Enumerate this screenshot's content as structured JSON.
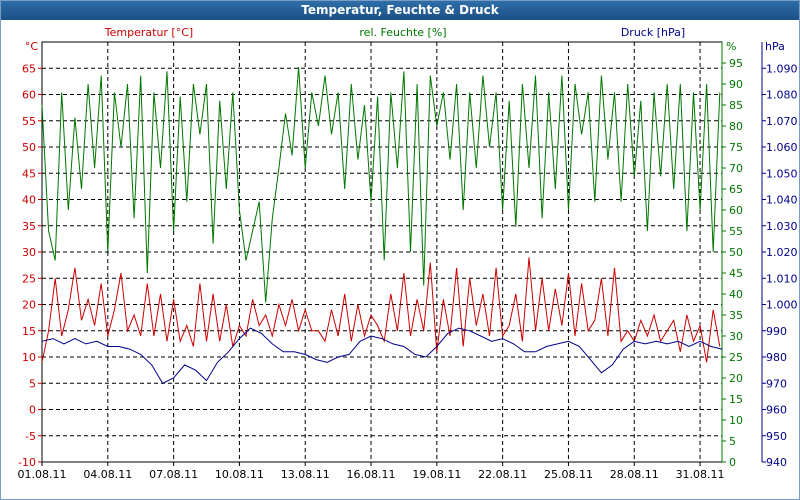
{
  "window": {
    "title": "Temperatur, Feuchte & Druck"
  },
  "chart_data": {
    "type": "line",
    "title": "Temperatur, Feuchte & Druck",
    "grid": true,
    "x_ticks": [
      "01.08.11",
      "04.08.11",
      "07.08.11",
      "10.08.11",
      "13.08.11",
      "16.08.11",
      "19.08.11",
      "22.08.11",
      "25.08.11",
      "28.08.11",
      "31.08.11"
    ],
    "x_range_days": [
      1,
      32
    ],
    "axes": {
      "left": {
        "label": "Temperatur [°C]",
        "unit": "°C",
        "range": [
          -10,
          70
        ],
        "ticks": [
          "-10",
          "-5",
          "0",
          "5",
          "10",
          "15",
          "20",
          "25",
          "30",
          "35",
          "40",
          "45",
          "50",
          "55",
          "60",
          "65"
        ],
        "color": "#cc0000"
      },
      "right1": {
        "label": "rel. Feuchte [%]",
        "unit": "%",
        "range": [
          0,
          100
        ],
        "ticks": [
          "0",
          "5",
          "10",
          "15",
          "20",
          "25",
          "30",
          "35",
          "40",
          "45",
          "50",
          "55",
          "60",
          "65",
          "70",
          "75",
          "80",
          "85",
          "90",
          "95"
        ],
        "color": "#007700"
      },
      "right2": {
        "label": "Druck [hPa]",
        "unit": "hPa",
        "range": [
          940,
          1100
        ],
        "ticks": [
          "940",
          "950",
          "960",
          "970",
          "980",
          "990",
          "1.000",
          "1.010",
          "1.020",
          "1.030",
          "1.040",
          "1.050",
          "1.060",
          "1.070",
          "1.080",
          "1.090"
        ],
        "color": "#00008b"
      }
    },
    "series": [
      {
        "name": "Temperatur [°C]",
        "axis": "left",
        "color": "#cc0000",
        "x": [
          1.0,
          1.3,
          1.6,
          1.9,
          2.2,
          2.5,
          2.8,
          3.1,
          3.4,
          3.7,
          4.0,
          4.3,
          4.6,
          4.9,
          5.2,
          5.5,
          5.8,
          6.1,
          6.4,
          6.7,
          7.0,
          7.3,
          7.6,
          7.9,
          8.2,
          8.5,
          8.8,
          9.1,
          9.4,
          9.7,
          10.0,
          10.3,
          10.6,
          10.9,
          11.2,
          11.5,
          11.8,
          12.1,
          12.4,
          12.7,
          13.0,
          13.3,
          13.6,
          13.9,
          14.2,
          14.5,
          14.8,
          15.1,
          15.4,
          15.7,
          16.0,
          16.3,
          16.6,
          16.9,
          17.2,
          17.5,
          17.8,
          18.1,
          18.4,
          18.7,
          19.0,
          19.3,
          19.6,
          19.9,
          20.2,
          20.5,
          20.8,
          21.1,
          21.4,
          21.7,
          22.0,
          22.3,
          22.6,
          22.9,
          23.2,
          23.5,
          23.8,
          24.1,
          24.4,
          24.7,
          25.0,
          25.3,
          25.6,
          25.9,
          26.2,
          26.5,
          26.8,
          27.1,
          27.4,
          27.7,
          28.0,
          28.3,
          28.6,
          28.9,
          29.2,
          29.5,
          29.8,
          30.1,
          30.4,
          30.7,
          31.0,
          31.3,
          31.6,
          31.9
        ],
        "values": [
          9,
          15,
          25,
          14,
          19,
          27,
          17,
          21,
          16,
          24,
          14,
          19,
          26,
          15,
          18,
          14,
          24,
          14,
          22,
          13,
          21,
          13,
          16,
          12,
          24,
          13,
          22,
          13,
          20,
          12,
          16,
          14,
          21,
          16,
          18,
          14,
          20,
          16,
          21,
          15,
          19,
          15,
          15,
          13,
          19,
          14,
          22,
          13,
          20,
          14,
          18,
          16,
          13,
          22,
          15,
          26,
          14,
          21,
          15,
          28,
          11,
          21,
          14,
          27,
          12,
          25,
          16,
          22,
          14,
          27,
          14,
          16,
          22,
          13,
          29,
          15,
          25,
          15,
          23,
          16,
          26,
          14,
          24,
          15,
          17,
          25,
          14,
          27,
          13,
          15,
          13,
          17,
          14,
          18,
          13,
          15,
          17,
          11,
          18,
          13,
          16,
          9,
          19,
          12
        ]
      },
      {
        "name": "rel. Feuchte [%]",
        "axis": "right1",
        "color": "#007700",
        "x": [
          1.0,
          1.3,
          1.6,
          1.9,
          2.2,
          2.5,
          2.8,
          3.1,
          3.4,
          3.7,
          4.0,
          4.3,
          4.6,
          4.9,
          5.2,
          5.5,
          5.8,
          6.1,
          6.4,
          6.7,
          7.0,
          7.3,
          7.6,
          7.9,
          8.2,
          8.5,
          8.8,
          9.1,
          9.4,
          9.7,
          10.0,
          10.3,
          10.6,
          10.9,
          11.2,
          11.5,
          11.8,
          12.1,
          12.4,
          12.7,
          13.0,
          13.3,
          13.6,
          13.9,
          14.2,
          14.5,
          14.8,
          15.1,
          15.4,
          15.7,
          16.0,
          16.3,
          16.6,
          16.9,
          17.2,
          17.5,
          17.8,
          18.1,
          18.4,
          18.7,
          19.0,
          19.3,
          19.6,
          19.9,
          20.2,
          20.5,
          20.8,
          21.1,
          21.4,
          21.7,
          22.0,
          22.3,
          22.6,
          22.9,
          23.2,
          23.5,
          23.8,
          24.1,
          24.4,
          24.7,
          25.0,
          25.3,
          25.6,
          25.9,
          26.2,
          26.5,
          26.8,
          27.1,
          27.4,
          27.7,
          28.0,
          28.3,
          28.6,
          28.9,
          29.2,
          29.5,
          29.8,
          30.1,
          30.4,
          30.7,
          31.0,
          31.3,
          31.6,
          31.9
        ],
        "values": [
          85,
          55,
          48,
          88,
          60,
          82,
          65,
          90,
          70,
          92,
          50,
          88,
          75,
          90,
          58,
          92,
          45,
          88,
          70,
          93,
          55,
          87,
          62,
          90,
          78,
          90,
          52,
          86,
          65,
          88,
          60,
          48,
          55,
          62,
          38,
          58,
          70,
          83,
          73,
          94,
          70,
          88,
          80,
          92,
          78,
          88,
          65,
          90,
          72,
          85,
          62,
          87,
          48,
          88,
          70,
          93,
          50,
          90,
          42,
          92,
          80,
          88,
          72,
          90,
          60,
          88,
          70,
          92,
          75,
          88,
          60,
          86,
          56,
          90,
          70,
          92,
          58,
          88,
          65,
          92,
          60,
          90,
          78,
          88,
          62,
          92,
          72,
          88,
          62,
          90,
          68,
          86,
          55,
          88,
          68,
          90,
          65,
          90,
          55,
          88,
          60,
          90,
          50,
          88
        ]
      },
      {
        "name": "Druck [hPa]",
        "axis": "right2",
        "color": "#00008b",
        "x": [
          1.0,
          1.5,
          2.0,
          2.5,
          3.0,
          3.5,
          4.0,
          4.5,
          5.0,
          5.5,
          6.0,
          6.5,
          7.0,
          7.5,
          8.0,
          8.5,
          9.0,
          9.5,
          10.0,
          10.5,
          11.0,
          11.5,
          12.0,
          12.5,
          13.0,
          13.5,
          14.0,
          14.5,
          15.0,
          15.5,
          16.0,
          16.5,
          17.0,
          17.5,
          18.0,
          18.5,
          19.0,
          19.5,
          20.0,
          20.5,
          21.0,
          21.5,
          22.0,
          22.5,
          23.0,
          23.5,
          24.0,
          24.5,
          25.0,
          25.5,
          26.0,
          26.5,
          27.0,
          27.5,
          28.0,
          28.5,
          29.0,
          29.5,
          30.0,
          30.5,
          31.0,
          31.5,
          32.0
        ],
        "values": [
          986,
          987,
          985,
          987,
          985,
          986,
          984,
          984,
          983,
          981,
          977,
          970,
          972,
          977,
          975,
          971,
          978,
          982,
          987,
          991,
          989,
          985,
          982,
          982,
          981,
          979,
          978,
          980,
          981,
          986,
          988,
          987,
          985,
          984,
          981,
          980,
          984,
          989,
          991,
          990,
          988,
          986,
          987,
          985,
          982,
          982,
          984,
          985,
          986,
          984,
          979,
          974,
          977,
          983,
          986,
          985,
          986,
          985,
          986,
          984,
          986,
          984,
          983
        ]
      }
    ]
  }
}
